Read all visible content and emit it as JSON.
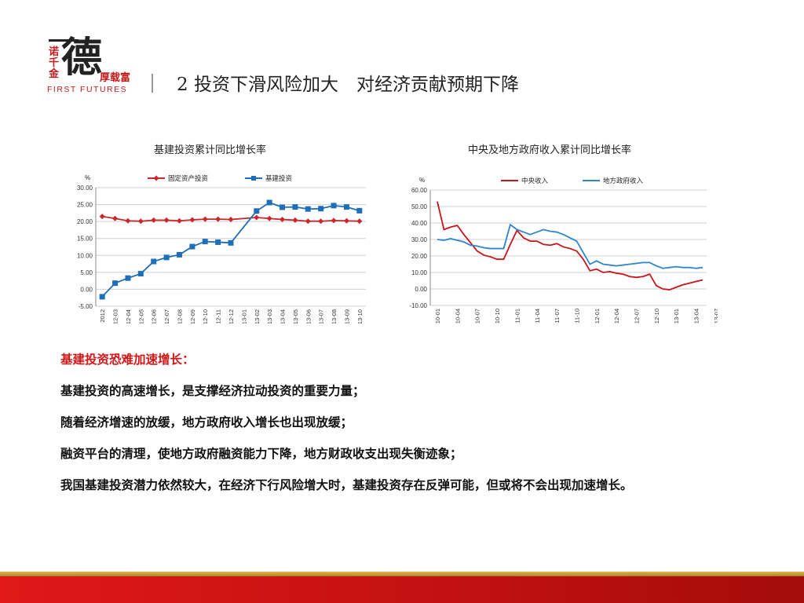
{
  "logo": {
    "vertical_text": "诺千金",
    "big_char": "德",
    "motto": "厚载富",
    "english": "FIRST FUTURES"
  },
  "page_title": "2 投资下滑风险加大　对经济贡献预期下降",
  "charts_titles": {
    "left": "基建投资累计同比增长率",
    "right": "中央及地方政府收入累计同比增长率"
  },
  "chart_data": [
    {
      "type": "line",
      "title": "基建投资累计同比增长率",
      "ylabel": "%",
      "ylim": [
        -5,
        30
      ],
      "yticks": [
        "30.00",
        "25.00",
        "20.00",
        "15.00",
        "10.00",
        "5.00",
        "0.00",
        "-5.00"
      ],
      "yticks_values": [
        30,
        25,
        20,
        15,
        10,
        5,
        0,
        -5
      ],
      "grid": true,
      "legend": "top",
      "categories": [
        "2012",
        "2012-03",
        "2012-04",
        "2012-05",
        "2012-06",
        "2012-07",
        "2012-08",
        "2012-09",
        "2012-10",
        "2012-11",
        "2012-12",
        "2013-01",
        "2013-02",
        "2013-03",
        "2013-04",
        "2013-05",
        "2013-06",
        "2013-07",
        "2013-08",
        "2013-09",
        "2013-10"
      ],
      "series": [
        {
          "name": "固定资产投资",
          "color": "#c8282c",
          "marker": "diamond",
          "values": [
            21.5,
            20.9,
            20.2,
            20.1,
            20.4,
            20.4,
            20.2,
            20.5,
            20.7,
            20.7,
            20.6,
            null,
            21.2,
            20.9,
            20.6,
            20.4,
            20.1,
            20.1,
            20.3,
            20.2,
            20.1
          ]
        },
        {
          "name": "基建投资",
          "color": "#1f6fb8",
          "marker": "square",
          "values": [
            -2.2,
            1.8,
            3.3,
            4.6,
            8.2,
            9.4,
            10.2,
            12.6,
            14.1,
            13.9,
            13.7,
            null,
            23.1,
            25.6,
            24.2,
            24.3,
            23.7,
            23.8,
            24.7,
            24.3,
            23.2
          ]
        }
      ]
    },
    {
      "type": "line",
      "title": "中央及地方政府收入累计同比增长率",
      "ylabel": "%",
      "ylim": [
        -10,
        60
      ],
      "yticks": [
        "60.00",
        "50.00",
        "40.00",
        "30.00",
        "20.00",
        "10.00",
        "0.00",
        "-10.00"
      ],
      "yticks_values": [
        60,
        50,
        40,
        30,
        20,
        10,
        0,
        -10
      ],
      "grid": true,
      "legend": "top",
      "x_labels": [
        "2010-01",
        "2010-04",
        "2010-07",
        "2010-10",
        "2011-01",
        "2011-04",
        "2011-07",
        "2011-10",
        "2012-01",
        "2012-04",
        "2012-07",
        "2012-10",
        "2013-01",
        "2013-04",
        "2013-07",
        "2013-10"
      ],
      "series": [
        {
          "name": "中央收入",
          "color": "#c8141a",
          "values": [
            53,
            36,
            37.5,
            38.5,
            33,
            28,
            23,
            20.5,
            19.5,
            18,
            18,
            27,
            35.5,
            31,
            29,
            29,
            27,
            26.5,
            27.5,
            25.5,
            24.5,
            23,
            18,
            11,
            12,
            10,
            10.5,
            9.5,
            9,
            7.5,
            7,
            7.5,
            9,
            2,
            0,
            -0.5,
            1,
            2.5,
            3.5,
            4.5,
            5.5
          ]
        },
        {
          "name": "地方政府收入",
          "color": "#2f86c8",
          "values": [
            30,
            29.5,
            30.5,
            29.5,
            28.5,
            26.5,
            26,
            25,
            24.5,
            24.5,
            24.5,
            39,
            36,
            34.5,
            33,
            34.5,
            36,
            35,
            34.5,
            33,
            31,
            29,
            22,
            15,
            17,
            15,
            14.5,
            14,
            14.5,
            15,
            15.5,
            16,
            16,
            14,
            12.5,
            13,
            13.5,
            13,
            13,
            12.5,
            13
          ]
        }
      ]
    }
  ],
  "body": {
    "heading": "基建投资恐难加速增长：",
    "paragraphs": [
      "基建投资的高速增长，是支撑经济拉动投资的重要力量；",
      "随着经济增速的放缓，地方政府收入增长也出现放缓；",
      "融资平台的清理，使地方政府融资能力下降，地方财政收支出现失衡迹象；",
      "我国基建投资潜力依然较大，在经济下行风险增大时，基建投资存在反弹可能，但或将不会出现加速增长。"
    ]
  }
}
